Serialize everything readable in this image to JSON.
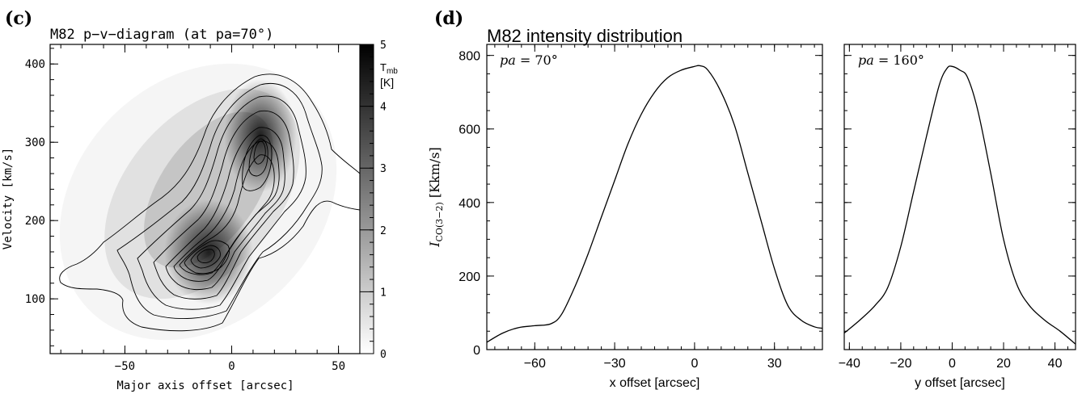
{
  "panel_c": {
    "letter": "(c)",
    "title": "M82  p−v−diagram  (at pa=70°)",
    "colorbar_label_top": "T",
    "colorbar_label_sub": "mb",
    "colorbar_label_unit": "[K]"
  },
  "panel_d": {
    "letter": "(d)",
    "title": "M82  intensity distribution",
    "ylabel_main": "I",
    "ylabel_sub": "CO(3−2)",
    "ylabel_unit": " [Kkm/s]",
    "left_annotation_italic": "pa",
    "left_annotation_value": " = 70°",
    "right_annotation_italic": "pa",
    "right_annotation_value": " = 160°"
  },
  "chart_data": [
    {
      "type": "heatmap",
      "title": "M82  p−v−diagram  (at pa=70°)",
      "xlabel": "Major axis offset [arcsec]",
      "ylabel": "Velocity [km/s]",
      "xlim": [
        -85,
        60
      ],
      "ylim": [
        30,
        425
      ],
      "xticks": [
        -50,
        0,
        50
      ],
      "yticks": [
        100,
        200,
        300,
        400
      ],
      "colorbar": {
        "label": "T_mb [K]",
        "range": [
          0,
          5
        ],
        "ticks": [
          0,
          1,
          2,
          3,
          4,
          5
        ]
      },
      "peaks": [
        {
          "x": -12,
          "y": 155,
          "value": 4.8
        },
        {
          "x": 12,
          "y": 310,
          "value": 4.6
        }
      ],
      "contour_levels": 12
    },
    {
      "type": "line",
      "xlabel": "x offset [arcsec]",
      "ylabel": "I_CO(3-2) [Kkm/s]",
      "annotation": "pa = 70°",
      "xlim": [
        -78,
        48
      ],
      "ylim": [
        0,
        830
      ],
      "xticks": [
        -60,
        -30,
        0,
        30
      ],
      "yticks": [
        0,
        200,
        400,
        600,
        800
      ],
      "x": [
        -78,
        -72,
        -66,
        -60,
        -54,
        -50,
        -45,
        -40,
        -35,
        -30,
        -25,
        -20,
        -15,
        -10,
        -5,
        0,
        2,
        5,
        10,
        15,
        20,
        25,
        30,
        35,
        40,
        45,
        48
      ],
      "y": [
        20,
        45,
        60,
        65,
        70,
        95,
        170,
        260,
        360,
        460,
        560,
        640,
        700,
        740,
        760,
        770,
        772,
        760,
        700,
        610,
        480,
        350,
        220,
        120,
        80,
        62,
        58
      ]
    },
    {
      "type": "line",
      "xlabel": "y offset [arcsec]",
      "annotation": "pa = 160°",
      "xlim": [
        -42,
        48
      ],
      "ylim": [
        0,
        830
      ],
      "xticks": [
        -40,
        -20,
        0,
        20,
        40
      ],
      "yticks": [
        0,
        200,
        400,
        600,
        800
      ],
      "x": [
        -42,
        -36,
        -30,
        -25,
        -20,
        -15,
        -10,
        -5,
        -2,
        0,
        3,
        6,
        10,
        15,
        20,
        25,
        30,
        36,
        42,
        48
      ],
      "y": [
        45,
        80,
        120,
        170,
        280,
        430,
        580,
        720,
        765,
        770,
        760,
        740,
        650,
        480,
        300,
        180,
        120,
        80,
        50,
        15
      ]
    }
  ]
}
